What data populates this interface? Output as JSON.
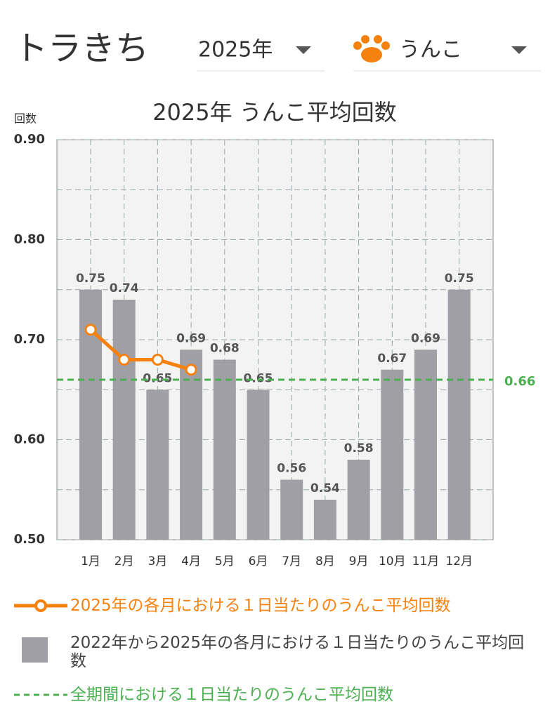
{
  "header": {
    "title": "トラきち",
    "year": "2025年",
    "category": "うんこ"
  },
  "chart_data": {
    "type": "bar",
    "title": "2025年 うんこ平均回数",
    "y_label": "回数",
    "categories": [
      "1月",
      "2月",
      "3月",
      "4月",
      "5月",
      "6月",
      "7月",
      "8月",
      "9月",
      "10月",
      "11月",
      "12月"
    ],
    "series": [
      {
        "name": "2022年から2025年の各月における１日当たりのうんこ平均回数",
        "type": "bar",
        "color": "#a19fa6",
        "values": [
          0.75,
          0.74,
          0.65,
          0.69,
          0.68,
          0.65,
          0.56,
          0.54,
          0.58,
          0.67,
          0.69,
          0.75
        ]
      },
      {
        "name": "2025年の各月における１日当たりのうんこ平均回数",
        "type": "line",
        "color": "#f5820f",
        "values": [
          0.71,
          0.68,
          0.68,
          0.67,
          null,
          null,
          null,
          null,
          null,
          null,
          null,
          null
        ]
      }
    ],
    "reference_line": {
      "name": "全期間における１日当たりのうんこ平均回数",
      "value": 0.66,
      "color": "#4caf50"
    },
    "ylim": [
      0.5,
      0.9
    ],
    "yticks": [
      {
        "value": 0.5,
        "label": "0.50"
      },
      {
        "value": 0.6,
        "label": "0.60"
      },
      {
        "value": 0.7,
        "label": "0.70"
      },
      {
        "value": 0.8,
        "label": "0.80"
      },
      {
        "value": 0.9,
        "label": "0.90"
      }
    ],
    "ygrid_minor": [
      0.55,
      0.65,
      0.75,
      0.85
    ],
    "grid": true
  }
}
